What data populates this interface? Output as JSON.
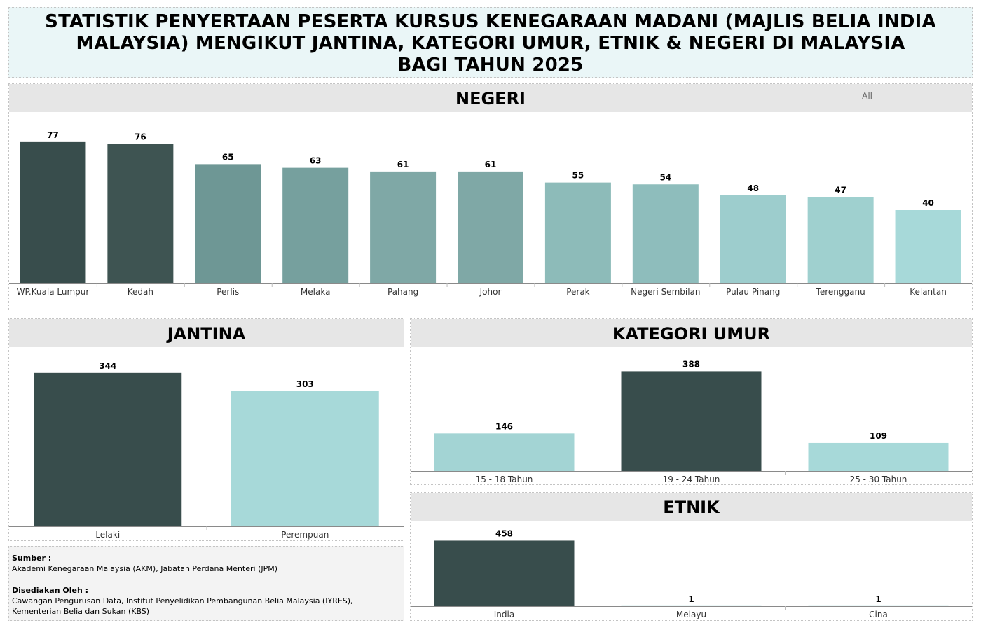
{
  "title": {
    "line1": "STATISTIK PENYERTAAN PESERTA KURSUS KENEGARAAN MADANI (MAJLIS BELIA INDIA",
    "line2": "MALAYSIA) MENGIKUT JANTINA, KATEGORI UMUR, ETNIK & NEGERI DI MALAYSIA",
    "line3": "BAGI TAHUN 2025"
  },
  "negeri_panel": {
    "header": "NEGERI",
    "filter_label": "All"
  },
  "jantina_panel": {
    "header": "JANTINA"
  },
  "umur_panel": {
    "header": "KATEGORI UMUR"
  },
  "etnik_panel": {
    "header": "ETNIK"
  },
  "source": {
    "sumber_head": "Sumber :",
    "sumber_text": "Akademi Kenegaraan Malaysia (AKM), Jabatan Perdana Menteri (JPM)",
    "disediakan_head": "Disediakan Oleh :",
    "disediakan_text": "Cawangan Pengurusan Data, Institut Penyelidikan Pembangunan Belia Malaysia (IYRES), Kementerian Belia dan Sukan (KBS)"
  },
  "chart_data": [
    {
      "id": "negeri",
      "type": "bar",
      "title": "NEGERI",
      "categories": [
        "WP.Kuala Lumpur",
        "Kedah",
        "Perlis",
        "Melaka",
        "Pahang",
        "Johor",
        "Perak",
        "Negeri Sembilan",
        "Pulau Pinang",
        "Terengganu",
        "Kelantan"
      ],
      "values": [
        77,
        76,
        65,
        63,
        61,
        61,
        55,
        54,
        48,
        47,
        40
      ],
      "colors": [
        "#384d4c",
        "#3e5452",
        "#6e9795",
        "#76a09e",
        "#7fa8a6",
        "#7fa8a6",
        "#8dbbb9",
        "#8ebdbc",
        "#9dcdcd",
        "#9fd0cf",
        "#a7d9d9"
      ],
      "ylim": [
        0,
        80
      ]
    },
    {
      "id": "jantina",
      "type": "bar",
      "title": "JANTINA",
      "categories": [
        "Lelaki",
        "Perempuan"
      ],
      "values": [
        344,
        303
      ],
      "colors": [
        "#384d4c",
        "#a7d9d9"
      ],
      "ylim": [
        0,
        350
      ]
    },
    {
      "id": "umur",
      "type": "bar",
      "title": "KATEGORI UMUR",
      "categories": [
        "15 - 18 Tahun",
        "19 - 24 Tahun",
        "25 - 30 Tahun"
      ],
      "values": [
        146,
        388,
        109
      ],
      "colors": [
        "#a3d4d4",
        "#384d4c",
        "#a7d9d9"
      ],
      "ylim": [
        0,
        400
      ]
    },
    {
      "id": "etnik",
      "type": "bar",
      "title": "ETNIK",
      "categories": [
        "India",
        "Melayu",
        "Cina"
      ],
      "values": [
        458,
        1,
        1
      ],
      "colors": [
        "#384d4c",
        "#a7d9d9",
        "#a7d9d9"
      ],
      "ylim": [
        0,
        470
      ]
    }
  ]
}
